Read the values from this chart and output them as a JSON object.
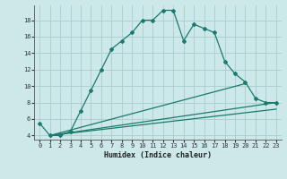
{
  "xlabel": "Humidex (Indice chaleur)",
  "bg_color": "#cce8e8",
  "line_color": "#1a7a6e",
  "grid_color": "#aacccc",
  "xlim": [
    -0.5,
    23.5
  ],
  "ylim": [
    3.5,
    19.8
  ],
  "yticks": [
    4,
    6,
    8,
    10,
    12,
    14,
    16,
    18
  ],
  "xticks": [
    0,
    1,
    2,
    3,
    4,
    5,
    6,
    7,
    8,
    9,
    10,
    11,
    12,
    13,
    14,
    15,
    16,
    17,
    18,
    19,
    20,
    21,
    22,
    23
  ],
  "line1_x": [
    0,
    1,
    2,
    3,
    4,
    5,
    6,
    7,
    8,
    9,
    10,
    11,
    12,
    13,
    14,
    15,
    16,
    17,
    18,
    19,
    20,
    21,
    22,
    23
  ],
  "line1_y": [
    5.5,
    4.0,
    4.0,
    4.5,
    7.0,
    9.5,
    12.0,
    14.5,
    15.5,
    16.5,
    18.0,
    18.0,
    19.2,
    19.2,
    15.5,
    17.5,
    17.0,
    16.5,
    13.0,
    11.5,
    10.5,
    8.5,
    8.0,
    8.0
  ],
  "line2_x": [
    1,
    20
  ],
  "line2_y": [
    4.0,
    10.3
  ],
  "line3_x": [
    1,
    23
  ],
  "line3_y": [
    4.0,
    8.0
  ],
  "line4_x": [
    1,
    23
  ],
  "line4_y": [
    4.0,
    7.2
  ]
}
